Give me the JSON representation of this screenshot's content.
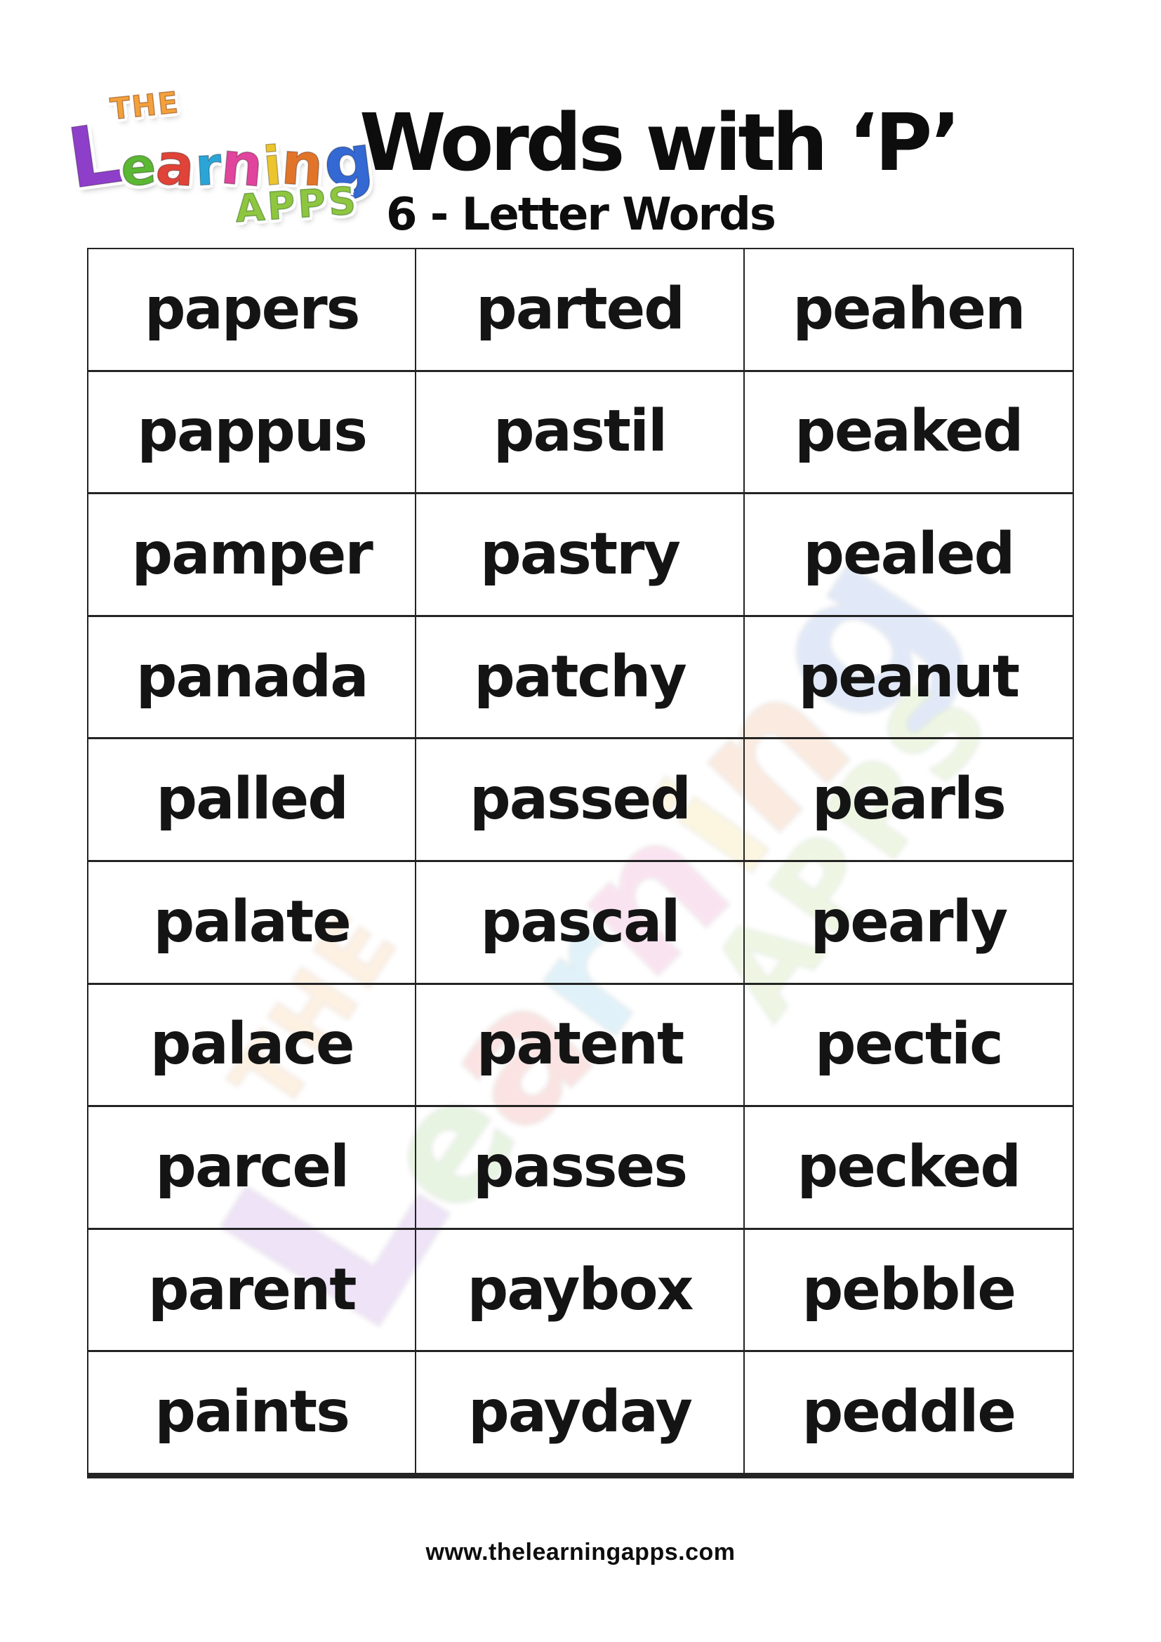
{
  "brand": {
    "the": "THE",
    "the_color": "#f2a13c",
    "learning_letters": [
      {
        "ch": "L",
        "color": "#8e3fc9"
      },
      {
        "ch": "e",
        "color": "#5cb734"
      },
      {
        "ch": "a",
        "color": "#e04338"
      },
      {
        "ch": "r",
        "color": "#2ba5d8"
      },
      {
        "ch": "n",
        "color": "#e0449c"
      },
      {
        "ch": "i",
        "color": "#ecc52e"
      },
      {
        "ch": "n",
        "color": "#e2742a"
      },
      {
        "ch": "g",
        "color": "#3468d2"
      }
    ],
    "apps": "APPS",
    "apps_color": "#8fc640"
  },
  "header": {
    "title": "Words with ‘P’",
    "subtitle": "6 - Letter Words"
  },
  "table": {
    "columns": 3,
    "rows": [
      [
        "papers",
        "parted",
        "peahen"
      ],
      [
        "pappus",
        "pastil",
        "peaked"
      ],
      [
        "pamper",
        "pastry",
        "pealed"
      ],
      [
        "panada",
        "patchy",
        "peanut"
      ],
      [
        "palled",
        "passed",
        "pearls"
      ],
      [
        "palate",
        "pascal",
        "pearly"
      ],
      [
        "palace",
        "patent",
        "pectic"
      ],
      [
        "parcel",
        "passes",
        "pecked"
      ],
      [
        "parent",
        "paybox",
        "pebble"
      ],
      [
        "paints",
        "payday",
        "peddle"
      ]
    ]
  },
  "footer": {
    "website": "www.thelearningapps.com"
  },
  "colors": {
    "word_text": "#141414",
    "table_border": "#242424"
  }
}
